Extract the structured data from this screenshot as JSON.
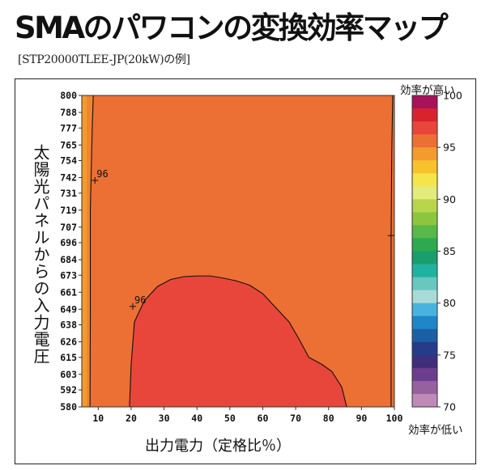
{
  "title": "SMAのパワコンの変換効率マップ",
  "subtitle": "[STP20000TLEE-JP(20kW)の例]",
  "legend_top_label": "効率が高い",
  "legend_bottom_label": "効率が低い",
  "colors": {
    "band_base": "#ec6f34",
    "band_inner": "#e8463a",
    "band_edge_left": "#f39b2e",
    "band_edge_strip": "#f0852f",
    "contour": "#111111"
  },
  "chart_data": {
    "type": "heatmap",
    "title": "",
    "xlabel": "出力電力（定格比％）",
    "ylabel": "太陽光パネルからの入力電圧",
    "x_ticks": [
      10,
      20,
      30,
      40,
      50,
      60,
      70,
      80,
      90,
      100
    ],
    "xlim": [
      5,
      100
    ],
    "y_ticks": [
      580,
      592,
      603,
      615,
      626,
      638,
      649,
      661,
      673,
      684,
      696,
      707,
      719,
      731,
      742,
      754,
      765,
      777,
      788,
      800
    ],
    "ylim": [
      580,
      800
    ],
    "colorbar": {
      "range": [
        70,
        100
      ],
      "tick_labels": [
        100,
        95,
        90,
        85,
        80,
        75,
        70
      ],
      "colors": [
        "#a8125a",
        "#d8232e",
        "#e8463a",
        "#ec6f34",
        "#f39b2e",
        "#f7c22b",
        "#f6e54a",
        "#e3eb7a",
        "#b9d54c",
        "#8cc63f",
        "#58b84a",
        "#2ea94f",
        "#1a9e6f",
        "#20b2a0",
        "#69c7c0",
        "#a8dbd8",
        "#49b3e0",
        "#1f86c7",
        "#1b5fa5",
        "#243c8a",
        "#3e2e7c",
        "#6b3d8c",
        "#95619e",
        "#bf8ab8"
      ]
    },
    "contours": [
      {
        "label": "96",
        "label_at": [
          20.5,
          651
        ],
        "points": [
          [
            19.5,
            580
          ],
          [
            20,
            610
          ],
          [
            21,
            640
          ],
          [
            24,
            655
          ],
          [
            28,
            665
          ],
          [
            32,
            670
          ],
          [
            36,
            672
          ],
          [
            40,
            672.5
          ],
          [
            44,
            672.5
          ],
          [
            48,
            671
          ],
          [
            52,
            669
          ],
          [
            56,
            666
          ],
          [
            60,
            660
          ],
          [
            64,
            650
          ],
          [
            68,
            640
          ],
          [
            71,
            628
          ],
          [
            74,
            615
          ],
          [
            78,
            610
          ],
          [
            81,
            605
          ],
          [
            84,
            594
          ],
          [
            85.5,
            580
          ]
        ]
      },
      {
        "label": "96",
        "label_at": [
          9,
          740
        ],
        "points": [
          [
            7.5,
            580
          ],
          [
            7.6,
            650
          ],
          [
            7.6,
            720
          ],
          [
            8.2,
            780
          ],
          [
            8.5,
            800
          ]
        ]
      },
      {
        "label": "",
        "label_at": [
          99,
          701
        ],
        "points": [
          [
            99,
            580
          ],
          [
            99,
            650
          ],
          [
            99,
            700
          ],
          [
            99.2,
            760
          ],
          [
            99.5,
            800
          ]
        ]
      }
    ]
  }
}
